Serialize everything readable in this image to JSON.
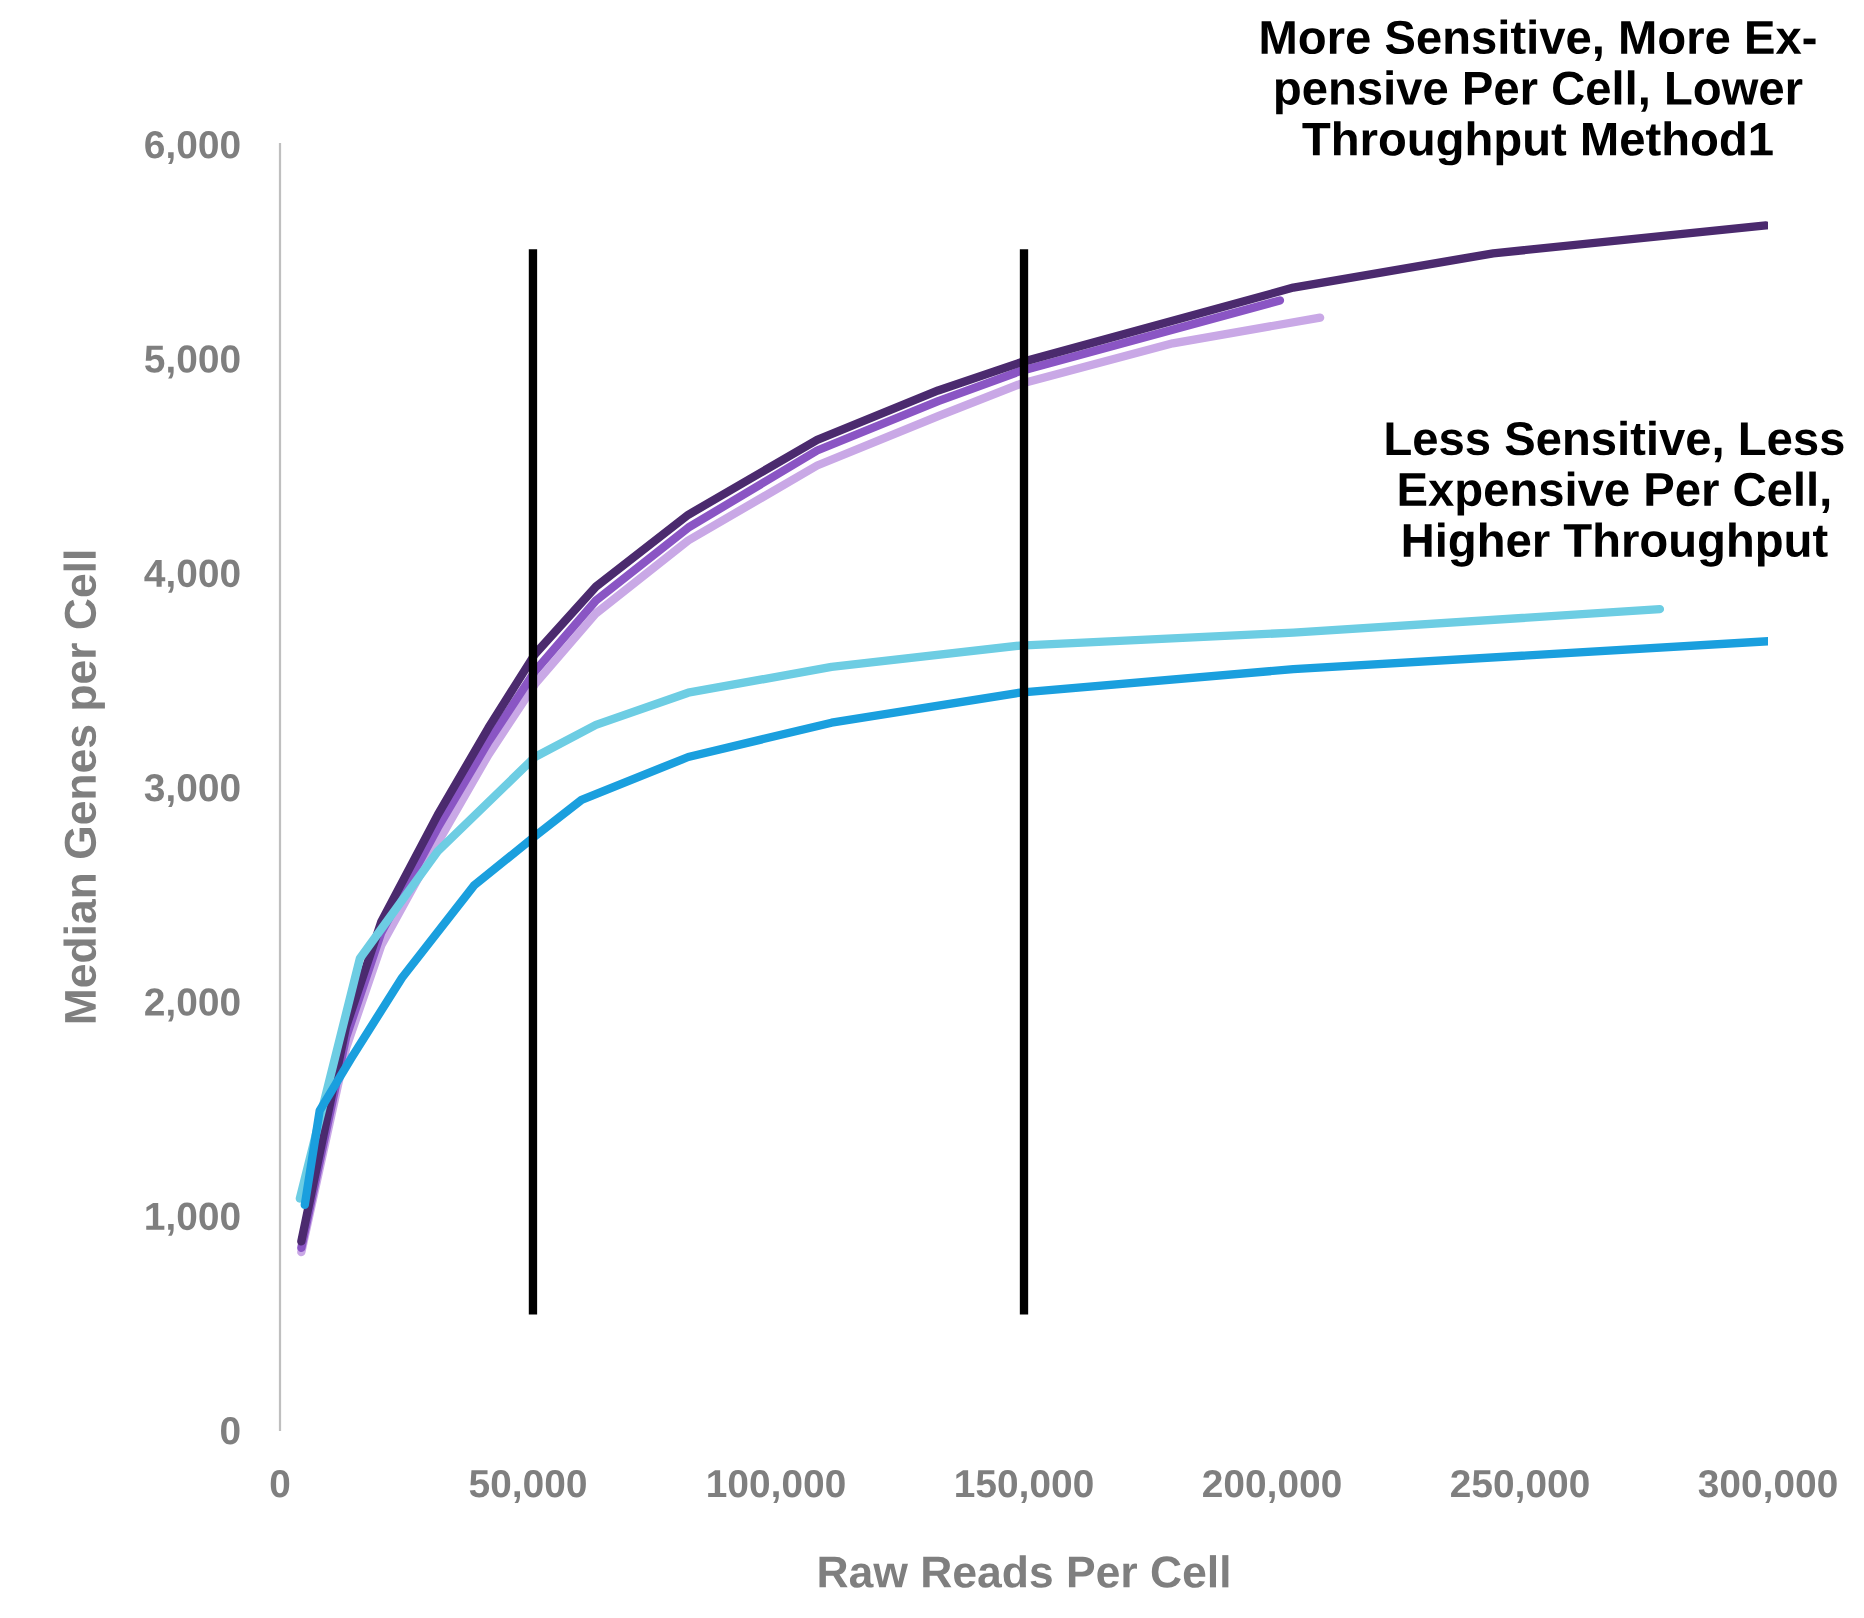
{
  "chart_data": {
    "type": "line",
    "xlabel": "Raw Reads Per Cell",
    "ylabel": "Median Genes per Cell",
    "annotations": [
      "More Sensitive, More Ex-\npensive Per Cell, Lower\nThroughput Method1",
      "Less Sensitive, Less\nExpensive Per Cell,\nHigher Throughput"
    ],
    "xlim": [
      0,
      300000
    ],
    "ylim": [
      0,
      6000
    ],
    "xticks": [
      {
        "value": 0,
        "label": "0"
      },
      {
        "value": 50000,
        "label": "50,000"
      },
      {
        "value": 100000,
        "label": "100,000"
      },
      {
        "value": 150000,
        "label": "150,000"
      },
      {
        "value": 200000,
        "label": "200,000"
      },
      {
        "value": 250000,
        "label": "250,000"
      },
      {
        "value": 300000,
        "label": "300,000"
      }
    ],
    "yticks": [
      {
        "value": 0,
        "label": "0"
      },
      {
        "value": 1000,
        "label": "1,000"
      },
      {
        "value": 2000,
        "label": "2,000"
      },
      {
        "value": 3000,
        "label": "3,000"
      },
      {
        "value": 4000,
        "label": "4,000"
      },
      {
        "value": 5000,
        "label": "5,000"
      },
      {
        "value": 6000,
        "label": "6,000"
      }
    ],
    "grid": false,
    "legend": false,
    "marker": "none",
    "line_style": "solid",
    "series": [
      {
        "color": "#c9a8e6",
        "x": [
          4300,
          13300,
          20400,
          31800,
          42000,
          51400,
          63700,
          82300,
          108300,
          132700,
          149200,
          180000,
          209700
        ],
        "values": [
          830,
          1780,
          2260,
          2740,
          3150,
          3480,
          3810,
          4150,
          4500,
          4730,
          4880,
          5070,
          5190
        ]
      },
      {
        "color": "#8a55c4",
        "x": [
          4300,
          13300,
          20400,
          31800,
          42000,
          51400,
          63700,
          82300,
          108300,
          132700,
          149200,
          201600
        ],
        "values": [
          850,
          1830,
          2320,
          2810,
          3210,
          3540,
          3870,
          4210,
          4570,
          4800,
          4940,
          5270
        ]
      },
      {
        "color": "#4b2a6e",
        "x": [
          4300,
          13300,
          20400,
          31800,
          42000,
          51400,
          63700,
          82300,
          108300,
          132700,
          149200,
          204300,
          244600,
          299600
        ],
        "values": [
          880,
          1880,
          2370,
          2870,
          3275,
          3620,
          3935,
          4270,
          4620,
          4850,
          4980,
          5330,
          5490,
          5620
        ]
      },
      {
        "color": "#6dcde3",
        "x": [
          4000,
          16100,
          31800,
          51400,
          63700,
          82300,
          111200,
          149200,
          204300,
          278200
        ],
        "values": [
          1080,
          2200,
          2700,
          3140,
          3290,
          3440,
          3560,
          3660,
          3720,
          3830
        ]
      },
      {
        "color": "#1a9fde",
        "x": [
          5000,
          8000,
          14500,
          24600,
          39100,
          51400,
          60800,
          82300,
          111200,
          149200,
          204300,
          300000
        ],
        "values": [
          1050,
          1490,
          1740,
          2110,
          2540,
          2770,
          2940,
          3140,
          3300,
          3440,
          3550,
          3680
        ]
      }
    ],
    "ref_lines": [
      {
        "axis": "x",
        "value": 51000,
        "color": "#000000",
        "line_style": "solid"
      },
      {
        "axis": "x",
        "value": 150000,
        "color": "#000000",
        "line_style": "solid"
      }
    ]
  }
}
